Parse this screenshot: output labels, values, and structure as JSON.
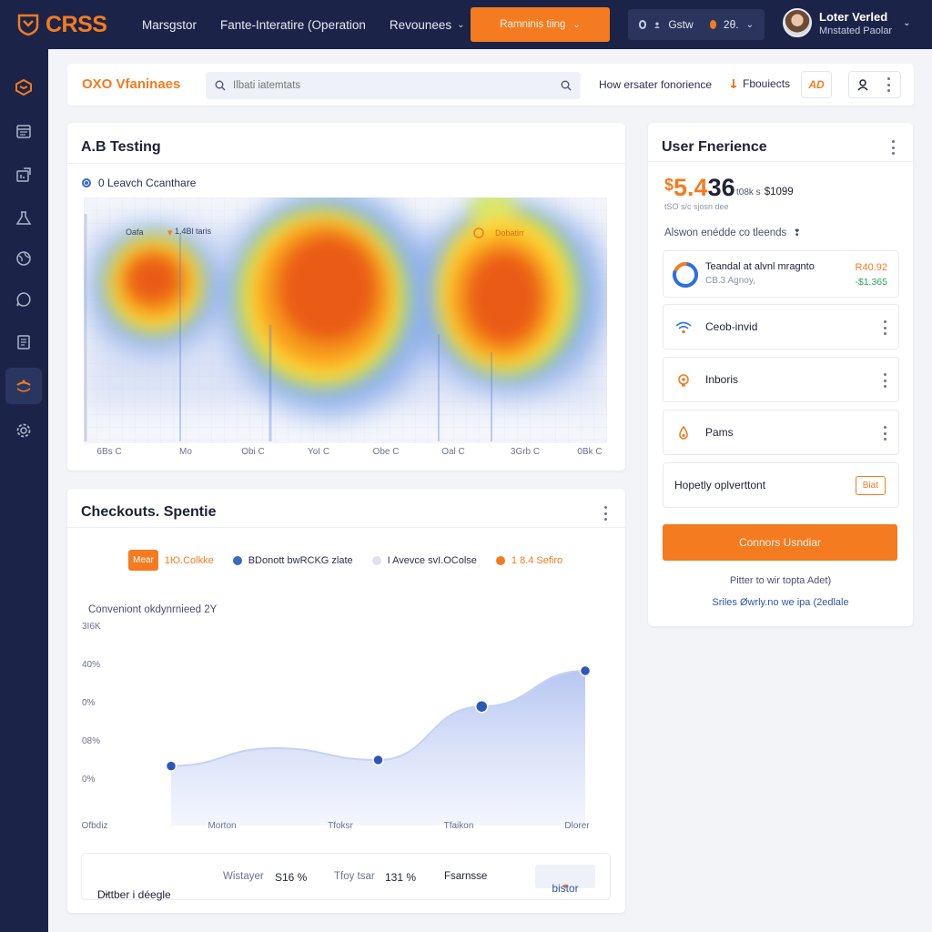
{
  "topbar": {
    "logo_text": "CRSS",
    "nav": [
      {
        "label": "Marsgstor",
        "chevron": false
      },
      {
        "label": "Fante-Interatire (Operation",
        "chevron": false
      },
      {
        "label": "Revounees",
        "chevron": true
      }
    ],
    "primary_button": "Ramninis tiing",
    "status_label": "Gstw",
    "status_value": "2θ.",
    "profile_name": "Loter Verled",
    "profile_role": "Mnstated Paolar"
  },
  "subheader": {
    "brand": "OXO Vfaninaes",
    "search_placeholder": "Ilbati iatemtats",
    "link": "How ersater fonorience",
    "products": "Fbouiects",
    "icon_btn_text": "AD"
  },
  "ab_card": {
    "title": "A.B Testing",
    "legend": "0 Leavch Ccanthare",
    "tag_left": "Oafa",
    "tag_mid": "1.4Bl taris",
    "tag_right": "Dobatirr",
    "x_labels": [
      "6Bs C",
      "Mo",
      "Obi C",
      "YoI C",
      "Obe C",
      "Oal C",
      "3Grb C",
      "0Bk C"
    ]
  },
  "checkout_card": {
    "title": "Checkouts. Spentie",
    "legend": [
      {
        "chip": "Mear",
        "label": "1Ю.Colkke",
        "color": "#f47b20"
      },
      {
        "label": "BDonott bwRCKG zlate",
        "color": "#3a66c7"
      },
      {
        "label": "I Avevce svI.OColse",
        "color": "#dfe2ea"
      },
      {
        "label": "1 8.4 Sefiro",
        "color": "#f47b20"
      }
    ],
    "subtitle": "Conveniont okdynrnieed 2Y",
    "y_labels": [
      "3I6K",
      "40%",
      "0%",
      "08%",
      "0%"
    ],
    "x_labels": [
      "Ofbdiz",
      "Morton",
      "Tfoksr",
      "Tfaikon",
      "Dlorer"
    ],
    "footer": {
      "select": "Dittber i déegle",
      "k1": "Wistayer",
      "v1": "S16 %",
      "k2": "Tfoy tsar",
      "v2": "131 %",
      "k3": "Fsarnsse",
      "badge": "bistor"
    }
  },
  "chart_data": {
    "type": "area",
    "title": "Checkouts. Spentie",
    "subtitle": "Conveniont okdynrnieed 2Y",
    "categories": [
      "Ofbdiz",
      "Morton",
      "Tfoksr",
      "Tfaikon",
      "Dlorer"
    ],
    "y_tick_labels": [
      "3I6K",
      "40%",
      "0%",
      "08%",
      "0%"
    ],
    "ylim": [
      0,
      100
    ],
    "series": [
      {
        "values": [
          30,
          39,
          33,
          60,
          78
        ],
        "markers": [
          0,
          2,
          3,
          4
        ]
      }
    ],
    "grid": false
  },
  "ux_card": {
    "title": "User Fnerience",
    "dollar": "$",
    "big_a": "5.4",
    "big_b": "36",
    "side_label": "t08k s",
    "side_value": "$1099",
    "sub": "tSO s/c sjosn dee",
    "note": "Alswon enédde co tleends",
    "items": [
      {
        "label": "Teandal at alvnl mragnto",
        "sub": "CB.3 Agnoy,",
        "v1": "R40.92",
        "v2": "-$1.365"
      },
      {
        "label": "Ceob-invid"
      },
      {
        "label": "Inboris"
      },
      {
        "label": "Pams"
      },
      {
        "label": "Hopetly oplverttont",
        "tag": "Biat"
      }
    ],
    "cta": "Connors Usndiar",
    "link1": "Pitter to wir topta Adet)",
    "link2": "Sriles Øwrly.no we ipa (2edlale"
  }
}
